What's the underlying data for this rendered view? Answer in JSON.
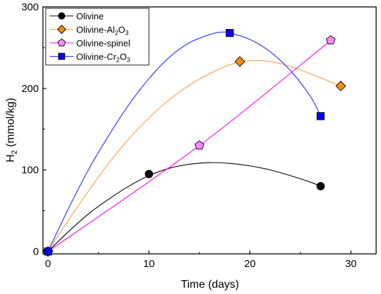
{
  "chart_data": {
    "type": "line",
    "xlabel": "Time (days)",
    "ylabel_main": "H",
    "ylabel_sub": "2",
    "ylabel_rest": " (mmol/kg)",
    "xlim": [
      -0.5,
      32.5
    ],
    "ylim": [
      -3,
      300
    ],
    "xticks": [
      0,
      10,
      20,
      30
    ],
    "yticks": [
      0,
      100,
      200,
      300
    ],
    "grid": false,
    "legend_position": "top-left",
    "series": [
      {
        "name": "Olivine",
        "name_parts": [
          {
            "t": "Olivine",
            "sub": false
          }
        ],
        "marker": "circle",
        "line_color": "#000000",
        "marker_color": "#000000",
        "x": [
          0,
          10,
          27
        ],
        "y": [
          0,
          95,
          80
        ],
        "curve": [
          [
            0,
            0
          ],
          [
            2,
            24
          ],
          [
            4,
            46
          ],
          [
            6,
            64
          ],
          [
            8,
            80
          ],
          [
            10,
            93
          ],
          [
            12,
            102
          ],
          [
            14,
            107
          ],
          [
            16,
            109
          ],
          [
            18,
            108
          ],
          [
            20,
            105
          ],
          [
            22,
            100
          ],
          [
            24,
            93
          ],
          [
            26,
            85
          ],
          [
            27,
            80
          ]
        ]
      },
      {
        "name": "Olivine-Al2O3",
        "name_parts": [
          {
            "t": "Olivine-Al",
            "sub": false
          },
          {
            "t": "2",
            "sub": true
          },
          {
            "t": "O",
            "sub": false
          },
          {
            "t": "3",
            "sub": true
          }
        ],
        "marker": "diamond",
        "line_color": "#f5a142",
        "marker_color": "#ff8c00",
        "x": [
          0,
          19,
          29
        ],
        "y": [
          0,
          233,
          203
        ],
        "curve": [
          [
            0,
            0
          ],
          [
            2,
            38
          ],
          [
            4,
            74
          ],
          [
            6,
            108
          ],
          [
            8,
            138
          ],
          [
            10,
            164
          ],
          [
            12,
            186
          ],
          [
            14,
            204
          ],
          [
            16,
            218
          ],
          [
            18,
            229
          ],
          [
            20,
            234
          ],
          [
            22,
            233
          ],
          [
            24,
            227
          ],
          [
            26,
            218
          ],
          [
            28,
            208
          ],
          [
            29,
            203
          ]
        ]
      },
      {
        "name": "Olivine-spinel",
        "name_parts": [
          {
            "t": "Olivine-spinel",
            "sub": false
          }
        ],
        "marker": "pentagon",
        "line_color": "#ff00ff",
        "marker_color": "#ff88ff",
        "x": [
          0,
          15,
          28
        ],
        "y": [
          0,
          130,
          259
        ],
        "curve": [
          [
            0,
            0
          ],
          [
            15,
            130
          ],
          [
            28,
            259
          ]
        ]
      },
      {
        "name": "Olivine-Cr2O3",
        "name_parts": [
          {
            "t": "Olivine-Cr",
            "sub": false
          },
          {
            "t": "2",
            "sub": true
          },
          {
            "t": "O",
            "sub": false
          },
          {
            "t": "3",
            "sub": true
          }
        ],
        "marker": "square",
        "line_color": "#2a2aff",
        "marker_color": "#0000ff",
        "x": [
          0,
          18,
          27
        ],
        "y": [
          0,
          268,
          166
        ],
        "curve": [
          [
            0,
            0
          ],
          [
            2,
            52
          ],
          [
            4,
            100
          ],
          [
            6,
            142
          ],
          [
            8,
            180
          ],
          [
            10,
            212
          ],
          [
            12,
            238
          ],
          [
            14,
            256
          ],
          [
            16,
            266
          ],
          [
            17,
            269
          ],
          [
            18,
            268
          ],
          [
            20,
            260
          ],
          [
            22,
            245
          ],
          [
            24,
            222
          ],
          [
            26,
            190
          ],
          [
            27,
            166
          ]
        ]
      }
    ]
  }
}
